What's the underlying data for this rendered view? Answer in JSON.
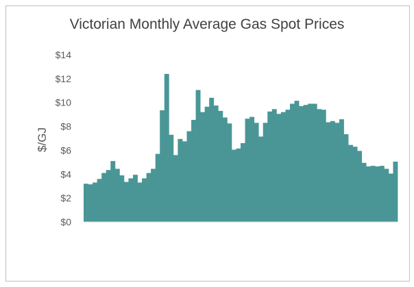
{
  "chart_data": {
    "type": "bar",
    "title": "Victorian Monthly Average Gas Spot Prices",
    "ylabel": "$/GJ",
    "xlabel": "",
    "ylim": [
      0,
      14
    ],
    "y_ticks": [
      "$0",
      "$2",
      "$4",
      "$6",
      "$8",
      "$10",
      "$12",
      "$14"
    ],
    "grid": false,
    "legend": "none",
    "bar_color": "#4a9696",
    "values": [
      3.2,
      3.15,
      3.3,
      3.6,
      4.1,
      4.35,
      5.1,
      4.45,
      3.9,
      3.35,
      3.65,
      3.95,
      3.3,
      3.65,
      4.1,
      4.45,
      5.7,
      9.35,
      12.4,
      7.3,
      5.6,
      6.95,
      6.75,
      7.6,
      8.55,
      11.05,
      9.2,
      9.65,
      10.4,
      9.75,
      9.3,
      8.75,
      8.25,
      6.05,
      6.15,
      6.6,
      8.65,
      8.8,
      8.3,
      7.15,
      8.3,
      9.25,
      9.45,
      9.05,
      9.2,
      9.4,
      9.9,
      10.15,
      9.7,
      9.8,
      9.9,
      9.9,
      9.45,
      9.4,
      8.35,
      8.45,
      8.3,
      8.6,
      7.35,
      6.45,
      6.3,
      5.95,
      4.95,
      4.65,
      4.7,
      4.65,
      4.7,
      4.45,
      4.05,
      5.05
    ]
  }
}
